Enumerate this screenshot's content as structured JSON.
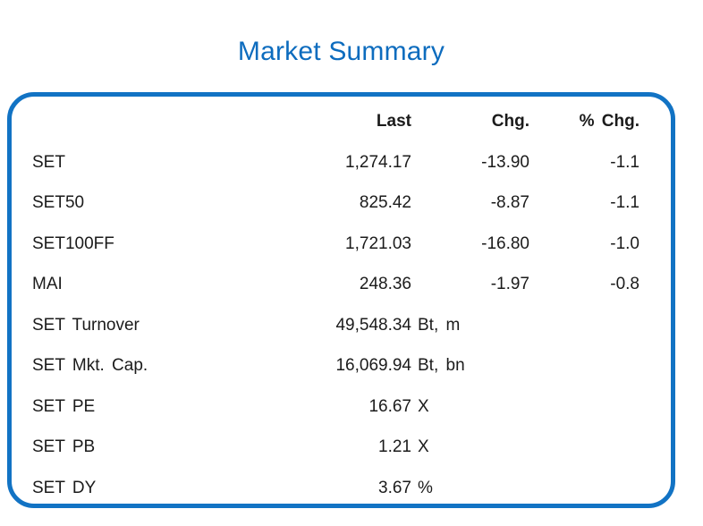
{
  "title": "Market Summary",
  "colors": {
    "accent_blue": "#0d6cbe",
    "border_blue": "#1273c4",
    "text": "#1b1b1b"
  },
  "table": {
    "headers": {
      "last": "Last",
      "chg": "Chg.",
      "pchg": "% Chg."
    },
    "rows": [
      {
        "label": "SET",
        "last": "1,274.17",
        "unit": "",
        "chg": "-13.90",
        "pchg": "-1.1"
      },
      {
        "label": "SET50",
        "last": "825.42",
        "unit": "",
        "chg": "-8.87",
        "pchg": "-1.1"
      },
      {
        "label": "SET100FF",
        "last": "1,721.03",
        "unit": "",
        "chg": "-16.80",
        "pchg": "-1.0"
      },
      {
        "label": "MAI",
        "last": "248.36",
        "unit": "",
        "chg": "-1.97",
        "pchg": "-0.8"
      },
      {
        "label": "SET Turnover",
        "last": "49,548.34",
        "unit": "Bt, m",
        "chg": "",
        "pchg": ""
      },
      {
        "label": "SET Mkt. Cap.",
        "last": "16,069.94",
        "unit": "Bt, bn",
        "chg": "",
        "pchg": ""
      },
      {
        "label": "SET PE",
        "last": "16.67",
        "unit": "X",
        "chg": "",
        "pchg": ""
      },
      {
        "label": "SET PB",
        "last": "1.21",
        "unit": "X",
        "chg": "",
        "pchg": ""
      },
      {
        "label": "SET DY",
        "last": "3.67",
        "unit": "%",
        "chg": "",
        "pchg": ""
      }
    ]
  },
  "chart_data": {
    "type": "table",
    "title": "Market Summary",
    "columns": [
      "",
      "Last",
      "Chg.",
      "% Chg."
    ],
    "rows": [
      [
        "SET",
        "1,274.17",
        "-13.90",
        "-1.1"
      ],
      [
        "SET50",
        "825.42",
        "-8.87",
        "-1.1"
      ],
      [
        "SET100FF",
        "1,721.03",
        "-16.80",
        "-1.0"
      ],
      [
        "MAI",
        "248.36",
        "-1.97",
        "-0.8"
      ],
      [
        "SET Turnover",
        "49,548.34 Bt, m",
        "",
        ""
      ],
      [
        "SET Mkt. Cap.",
        "16,069.94 Bt, bn",
        "",
        ""
      ],
      [
        "SET PE",
        "16.67 X",
        "",
        ""
      ],
      [
        "SET PB",
        "1.21 X",
        "",
        ""
      ],
      [
        "SET DY",
        "3.67 %",
        "",
        ""
      ]
    ]
  }
}
